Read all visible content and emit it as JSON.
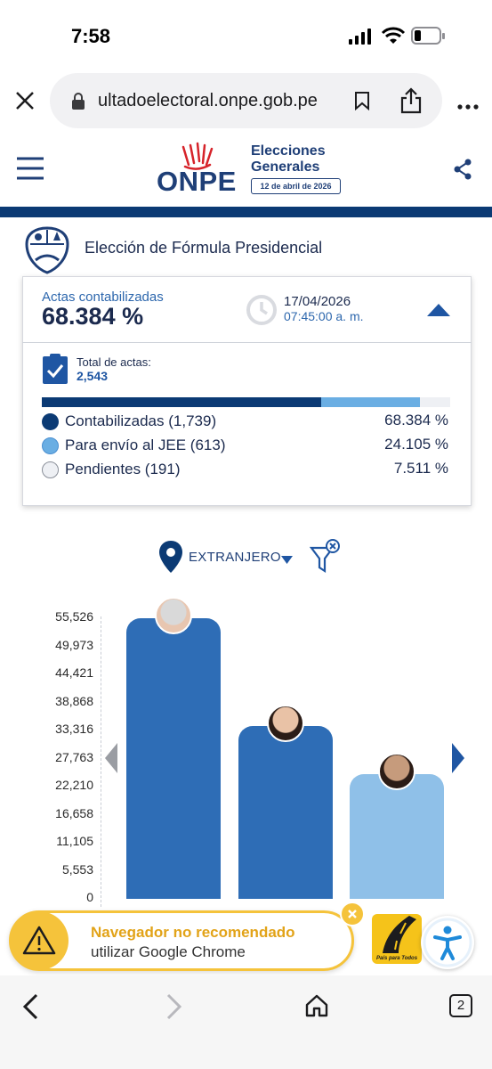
{
  "status_bar": {
    "time": "7:58",
    "battery_icon": "battery-low-icon"
  },
  "browser": {
    "url": "ultadoelectoral.onpe.gob.pe"
  },
  "header": {
    "logo_text": "ONPE",
    "title_line1": "Elecciones",
    "title_line2": "Generales",
    "date_badge": "12 de abril de 2026"
  },
  "election": {
    "title": "Elección de Fórmula Presidencial"
  },
  "summary": {
    "actas_label": "Actas contabilizadas",
    "actas_pct": "68.384 %",
    "date": "17/04/2026",
    "time": "07:45:00 a. m.",
    "total_label": "Total de actas:",
    "total_value": "2,543",
    "progress": [
      0.68384,
      0.24105,
      0.07511
    ],
    "legend": [
      {
        "label": "Contabilizadas (1,739)",
        "pct": "68.384 %",
        "color": "#0b3a74"
      },
      {
        "label": "Para envío al JEE (613)",
        "pct": "24.105 %",
        "color": "#6aaee3"
      },
      {
        "label": "Pendientes (191)",
        "pct": "7.511 %",
        "color": "#eef0f4"
      }
    ]
  },
  "filter": {
    "location": "EXTRANJERO"
  },
  "chart_data": {
    "type": "bar",
    "y_ticks": [
      "55,526",
      "49,973",
      "44,421",
      "38,868",
      "33,316",
      "27,763",
      "22,210",
      "16,658",
      "11,105",
      "5,553",
      "0"
    ],
    "ylim": [
      0,
      55526
    ],
    "values": [
      55526,
      34200,
      24700
    ],
    "colors": [
      "#2e6db6",
      "#2e6db6",
      "#8fc0e8"
    ]
  },
  "toast": {
    "title": "Navegador no recomendado",
    "subtitle": "utilizar Google Chrome"
  },
  "sponsor": {
    "label": "País para Todos"
  }
}
